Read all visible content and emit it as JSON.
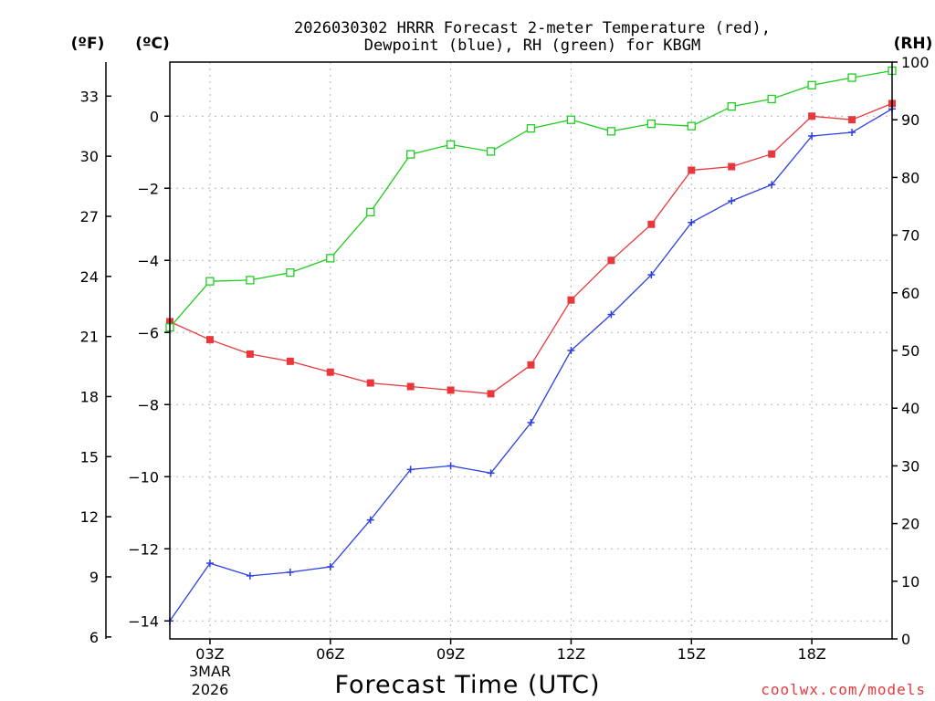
{
  "chart_data": {
    "type": "line",
    "title_line1": "2026030302 HRRR Forecast 2-meter Temperature (red),",
    "title_line2": "Dewpoint (blue), RH (green) for KBGM",
    "xlabel": "Forecast Time (UTC)",
    "unit_f": "(ºF)",
    "unit_c": "(ºC)",
    "unit_rh": "(RH)",
    "x_hours": [
      2,
      3,
      4,
      5,
      6,
      7,
      8,
      9,
      10,
      11,
      12,
      13,
      14,
      15,
      16,
      17,
      18,
      19,
      20
    ],
    "xlim": [
      2,
      20
    ],
    "x_ticks": [
      {
        "hour": 3,
        "label": "03Z"
      },
      {
        "hour": 6,
        "label": "06Z"
      },
      {
        "hour": 9,
        "label": "09Z"
      },
      {
        "hour": 12,
        "label": "12Z"
      },
      {
        "hour": 15,
        "label": "15Z"
      },
      {
        "hour": 18,
        "label": "18Z"
      }
    ],
    "date_line1": "3MAR",
    "date_line2": "2026",
    "ylim_c": [
      -14.5,
      1.5
    ],
    "yticks_c": [
      0,
      -2,
      -4,
      -6,
      -8,
      -10,
      -12,
      -14
    ],
    "yticks_f": [
      33,
      30,
      27,
      24,
      21,
      18,
      15,
      12,
      9,
      6
    ],
    "ylim_rh": [
      0,
      100
    ],
    "yticks_rh": [
      0,
      10,
      20,
      30,
      40,
      50,
      60,
      70,
      80,
      90,
      100
    ],
    "series": [
      {
        "name": "Temperature",
        "axis": "c",
        "color": "#e8383c",
        "marker": "filled-square",
        "values": [
          -5.7,
          -6.2,
          -6.6,
          -6.8,
          -7.1,
          -7.4,
          -7.5,
          -7.6,
          -7.7,
          -6.9,
          -5.1,
          -4.0,
          -3.0,
          -1.5,
          -1.4,
          -1.05,
          0.0,
          -0.1,
          0.35
        ]
      },
      {
        "name": "Dewpoint",
        "axis": "c",
        "color": "#2c3fe0",
        "marker": "plus",
        "values": [
          -14.0,
          -12.4,
          -12.75,
          -12.65,
          -12.5,
          -11.2,
          -9.8,
          -9.7,
          -9.9,
          -8.5,
          -6.5,
          -5.5,
          -4.4,
          -2.95,
          -2.35,
          -1.9,
          -0.55,
          -0.45,
          0.2
        ]
      },
      {
        "name": "RH",
        "axis": "rh",
        "color": "#22cc22",
        "marker": "open-square",
        "values": [
          54,
          62,
          62.2,
          63.5,
          66,
          74,
          84,
          85.7,
          84.5,
          88.5,
          90,
          88,
          89.3,
          88.9,
          92.3,
          93.6,
          96,
          97.3,
          98.5
        ]
      }
    ]
  },
  "footer": {
    "credit": "coolwx.com/models"
  }
}
